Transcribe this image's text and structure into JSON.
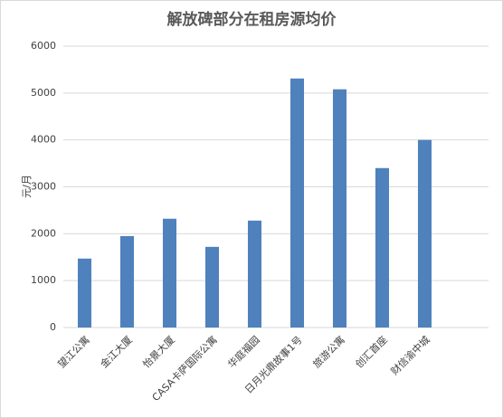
{
  "chart_data": {
    "type": "bar",
    "title": "解放碑部分在租房源均价",
    "y_label": "元/月",
    "categories": [
      "望江公寓",
      "金江大厦",
      "怡景大厦",
      "CASA卡萨国际公寓",
      "华庭福园",
      "日月光鼎故事1号",
      "旅游公寓",
      "创汇首座",
      "财信渝中城",
      null
    ],
    "values": [
      1470,
      1950,
      2320,
      1720,
      2280,
      5310,
      5080,
      3400,
      4000,
      null
    ],
    "color": "#4f81bd",
    "ylim": [
      0,
      6000
    ],
    "yticks": [
      0,
      1000,
      2000,
      3000,
      4000,
      5000,
      6000
    ],
    "grid": true
  }
}
